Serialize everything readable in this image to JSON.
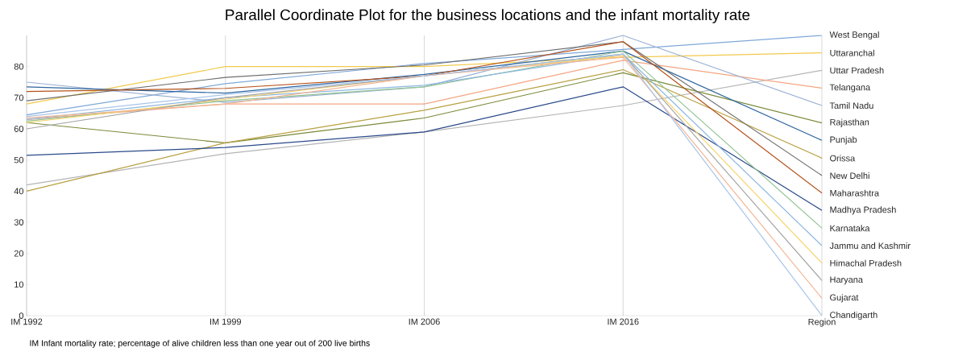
{
  "chart_data": {
    "type": "line",
    "title": "Parallel Coordinate Plot for the business locations and the infant mortality rate",
    "categories": [
      "IM 1992",
      "IM 1999",
      "IM 2006",
      "IM 2016",
      "Region"
    ],
    "ylim": [
      0,
      90
    ],
    "yticks": [
      0,
      10,
      20,
      30,
      40,
      50,
      60,
      70,
      80
    ],
    "grid": "x",
    "line_style": "solid",
    "annotations": [
      "IM       Infant mortality rate; percentage of alive children less than one year out of 200 live births"
    ],
    "series": [
      {
        "name": "West Bengal",
        "color": "#7fa8d8",
        "values": [
          64.5,
          74.5,
          81,
          85.5,
          90
        ]
      },
      {
        "name": "Uttaranchal",
        "color": "#f2c94c",
        "values": [
          68,
          80,
          80,
          83,
          84.4
        ]
      },
      {
        "name": "Uttar Pradesh",
        "color": "#b4b4b4",
        "values": [
          42,
          52,
          59,
          67.5,
          78.8
        ]
      },
      {
        "name": "Telangana",
        "color": "#f4a582",
        "values": [
          63,
          68,
          68,
          82,
          73.1
        ]
      },
      {
        "name": "Tamil Nadu",
        "color": "#9bb0d4",
        "values": [
          75,
          68.5,
          73.5,
          90,
          67.5
        ]
      },
      {
        "name": "Rajasthan",
        "color": "#7a8a3a",
        "values": [
          62,
          55.5,
          63.5,
          78,
          61.9
        ]
      },
      {
        "name": "Punjab",
        "color": "#2e67a0",
        "values": [
          73.5,
          71.5,
          77.5,
          85,
          56.3
        ]
      },
      {
        "name": "Orissa",
        "color": "#b8a040",
        "values": [
          40,
          55.5,
          66,
          79,
          50.6
        ]
      },
      {
        "name": "New Delhi",
        "color": "#6e6e6e",
        "values": [
          69,
          76.5,
          80.5,
          88,
          45
        ]
      },
      {
        "name": "Maharashtra",
        "color": "#b5521a",
        "values": [
          72,
          73,
          77,
          88,
          39.4
        ]
      },
      {
        "name": "Madhya Pradesh",
        "color": "#2a4a8a",
        "values": [
          51.5,
          54,
          59,
          73.5,
          33.8
        ]
      },
      {
        "name": "Karnataka",
        "color": "#93c493",
        "values": [
          62.5,
          69,
          73.5,
          85,
          28.1
        ]
      },
      {
        "name": "Jammu and Kashmir",
        "color": "#8fb8e0",
        "values": [
          63,
          70,
          74,
          84,
          22.5
        ]
      },
      {
        "name": "Himachal Pradesh",
        "color": "#f7d36a",
        "values": [
          62,
          69.5,
          77,
          83.5,
          16.9
        ]
      },
      {
        "name": "Haryana",
        "color": "#a6a6a6",
        "values": [
          60,
          70,
          77,
          84,
          11.3
        ]
      },
      {
        "name": "Gujarat",
        "color": "#f4b593",
        "values": [
          63.5,
          68,
          77,
          83,
          5.6
        ]
      },
      {
        "name": "Chandigarth",
        "color": "#a8c4ea",
        "values": [
          64,
          71,
          77,
          84,
          0
        ]
      }
    ]
  }
}
